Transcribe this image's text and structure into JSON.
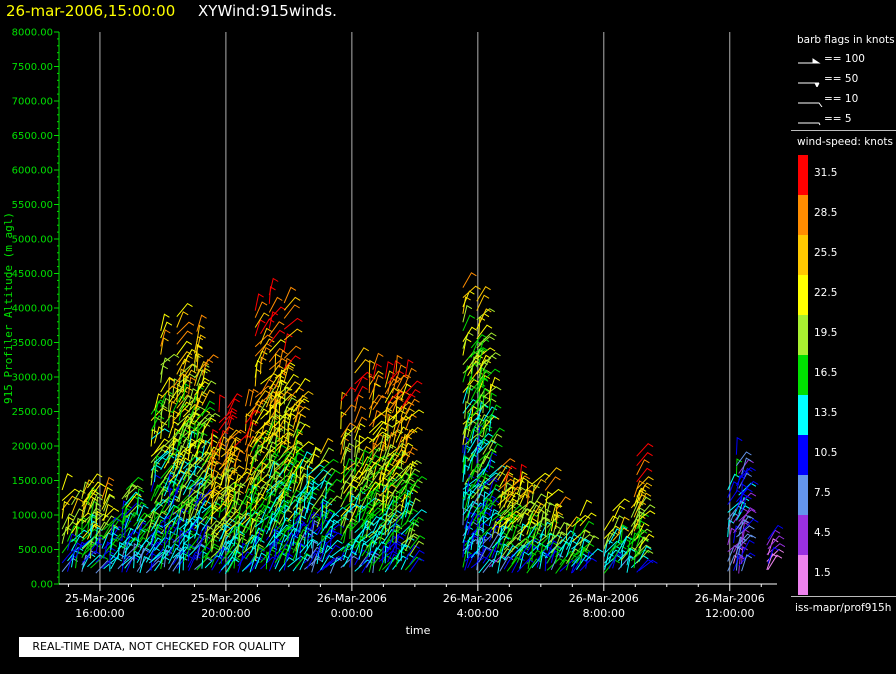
{
  "header": {
    "datetime": "26-mar-2006,15:00:00",
    "title": "XYWind:915winds."
  },
  "disclaimer": "REAL-TIME DATA, NOT CHECKED FOR QUALITY",
  "legend": {
    "flags_title": "barb flags in knots",
    "flags": [
      "== 100",
      "== 50",
      "== 10",
      "== 5"
    ],
    "speed_title": "wind-speed: knots",
    "bins": [
      {
        "label": "31.5",
        "color": "#ff0000"
      },
      {
        "label": "28.5",
        "color": "#ff8c00"
      },
      {
        "label": "25.5",
        "color": "#ffc800"
      },
      {
        "label": "22.5",
        "color": "#ffff00"
      },
      {
        "label": "19.5",
        "color": "#a8f030"
      },
      {
        "label": "16.5",
        "color": "#00e000"
      },
      {
        "label": "13.5",
        "color": "#00ffff"
      },
      {
        "label": "10.5",
        "color": "#0000ff"
      },
      {
        "label": "7.5",
        "color": "#6495ed"
      },
      {
        "label": "4.5",
        "color": "#9a30e0"
      },
      {
        "label": "1.5",
        "color": "#ee82ee"
      }
    ],
    "source": "iss-mapr/prof915h"
  },
  "chart_data": {
    "type": "scatter",
    "xlabel": "time",
    "ylabel": "915 Profiler Altitude (m agl)",
    "ylim": [
      0,
      8000
    ],
    "xlim_hours": [
      14.7,
      37.5
    ],
    "y_ticks": [
      "0.00",
      "500.00",
      "1000.00",
      "1500.00",
      "2000.00",
      "2500.00",
      "3000.00",
      "3500.00",
      "4000.00",
      "4500.00",
      "5000.00",
      "5500.00",
      "6000.00",
      "6500.00",
      "7000.00",
      "7500.00",
      "8000.00"
    ],
    "x_ticks": [
      {
        "hour": 16,
        "date": "25-Mar-2006",
        "time": "16:00:00"
      },
      {
        "hour": 20,
        "date": "25-Mar-2006",
        "time": "20:00:00"
      },
      {
        "hour": 24,
        "date": "26-Mar-2006",
        "time": "0:00:00"
      },
      {
        "hour": 28,
        "date": "26-Mar-2006",
        "time": "4:00:00"
      },
      {
        "hour": 32,
        "date": "26-Mar-2006",
        "time": "8:00:00"
      },
      {
        "hour": 36,
        "date": "26-Mar-2006",
        "time": "12:00:00"
      }
    ],
    "grid": "vertical",
    "profile_groups": [
      {
        "name": "g1",
        "t_start": 14.8,
        "t_end": 16.2,
        "alt_top": 1500,
        "speed": 22
      },
      {
        "name": "g2",
        "t_start": 16.2,
        "t_end": 17.6,
        "alt_top": 1400,
        "speed": 17
      },
      {
        "name": "g3",
        "t_start": 17.6,
        "t_end": 19.3,
        "alt_top": 4300,
        "speed": 24
      },
      {
        "name": "g4",
        "t_start": 19.3,
        "t_end": 20.8,
        "alt_top": 2700,
        "speed": 27
      },
      {
        "name": "g5",
        "t_start": 20.8,
        "t_end": 22.3,
        "alt_top": 4400,
        "speed": 27
      },
      {
        "name": "g6",
        "t_start": 22.3,
        "t_end": 23.4,
        "alt_top": 2000,
        "speed": 18
      },
      {
        "name": "g7",
        "t_start": 23.6,
        "t_end": 25.9,
        "alt_top": 3300,
        "speed": 26
      },
      {
        "name": "g8",
        "t_start": 27.4,
        "t_end": 28.4,
        "alt_top": 4500,
        "speed": 21
      },
      {
        "name": "g9",
        "t_start": 28.4,
        "t_end": 30.2,
        "alt_top": 1900,
        "speed": 25
      },
      {
        "name": "g10",
        "t_start": 30.2,
        "t_end": 31.5,
        "alt_top": 1200,
        "speed": 22
      },
      {
        "name": "g11",
        "t_start": 31.9,
        "t_end": 33.0,
        "alt_top": 1300,
        "speed": 24
      },
      {
        "name": "g12",
        "t_start": 33.0,
        "t_end": 33.2,
        "alt_top": 1900,
        "speed": 27
      },
      {
        "name": "g13",
        "t_start": 35.9,
        "t_end": 36.3,
        "alt_top": 2300,
        "speed": 13
      },
      {
        "name": "g14",
        "t_start": 36.2,
        "t_end": 36.5,
        "alt_top": 2000,
        "speed": 10
      },
      {
        "name": "g15",
        "t_start": 37.1,
        "t_end": 37.3,
        "alt_top": 1300,
        "speed": 9
      }
    ]
  }
}
